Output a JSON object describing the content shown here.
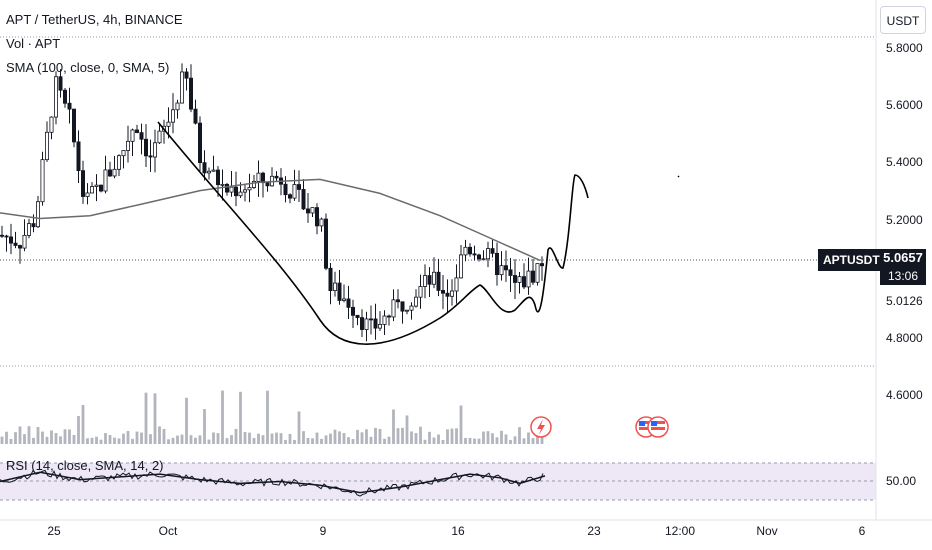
{
  "header": {
    "symbol_line": "APT / TetherUS, 4h, BINANCE",
    "volume_line": "Vol · APT",
    "sma_line": "SMA (100, close, 0, SMA, 5)"
  },
  "currency_button": "USDT",
  "price_label": {
    "ticker": "APTUSDT",
    "value": "5.0657",
    "countdown": "13:06"
  },
  "y_axis_labels": [
    "5.8000",
    "5.6000",
    "5.4000",
    "5.2000",
    "5.0126",
    "4.8000",
    "4.6000"
  ],
  "rsi": {
    "legend": "RSI (14, close, SMA, 14, 2)",
    "level_label": "50.00"
  },
  "x_axis_labels": [
    "25",
    "Oct",
    "9",
    "16",
    "23",
    "12:00",
    "Nov",
    "6"
  ],
  "colors": {
    "up": "#26a69a",
    "down": "#ef5350",
    "candle": "#131722",
    "sma": "#6b6b6b",
    "rsi_band": "#7e57c2"
  },
  "chart_data": {
    "type": "line",
    "title": "APT / TetherUS, 4h, BINANCE",
    "ylim": [
      4.55,
      5.85
    ],
    "price_path": [
      {
        "x": 0,
        "y": 5.14
      },
      {
        "x": 20,
        "y": 5.12
      },
      {
        "x": 35,
        "y": 5.2
      },
      {
        "x": 55,
        "y": 5.68
      },
      {
        "x": 70,
        "y": 5.55
      },
      {
        "x": 85,
        "y": 5.25
      },
      {
        "x": 100,
        "y": 5.32
      },
      {
        "x": 120,
        "y": 5.42
      },
      {
        "x": 135,
        "y": 5.55
      },
      {
        "x": 150,
        "y": 5.42
      },
      {
        "x": 170,
        "y": 5.56
      },
      {
        "x": 185,
        "y": 5.72
      },
      {
        "x": 200,
        "y": 5.42
      },
      {
        "x": 225,
        "y": 5.3
      },
      {
        "x": 250,
        "y": 5.32
      },
      {
        "x": 280,
        "y": 5.35
      },
      {
        "x": 300,
        "y": 5.26
      },
      {
        "x": 320,
        "y": 5.2
      },
      {
        "x": 330,
        "y": 4.95
      },
      {
        "x": 350,
        "y": 4.9
      },
      {
        "x": 370,
        "y": 4.8
      },
      {
        "x": 390,
        "y": 4.86
      },
      {
        "x": 410,
        "y": 4.92
      },
      {
        "x": 430,
        "y": 4.98
      },
      {
        "x": 450,
        "y": 4.93
      },
      {
        "x": 465,
        "y": 5.1
      },
      {
        "x": 480,
        "y": 5.08
      },
      {
        "x": 500,
        "y": 5.02
      },
      {
        "x": 515,
        "y": 4.96
      },
      {
        "x": 530,
        "y": 4.99
      },
      {
        "x": 545,
        "y": 5.06
      }
    ],
    "sma_100": [
      {
        "x": 0,
        "y": 5.22
      },
      {
        "x": 40,
        "y": 5.2
      },
      {
        "x": 90,
        "y": 5.21
      },
      {
        "x": 140,
        "y": 5.25
      },
      {
        "x": 200,
        "y": 5.3
      },
      {
        "x": 260,
        "y": 5.33
      },
      {
        "x": 320,
        "y": 5.34
      },
      {
        "x": 380,
        "y": 5.29
      },
      {
        "x": 440,
        "y": 5.21
      },
      {
        "x": 490,
        "y": 5.13
      },
      {
        "x": 540,
        "y": 5.05
      }
    ],
    "rsi_path": [
      {
        "x": 0,
        "y": 50
      },
      {
        "x": 40,
        "y": 60
      },
      {
        "x": 80,
        "y": 52
      },
      {
        "x": 120,
        "y": 55
      },
      {
        "x": 160,
        "y": 58
      },
      {
        "x": 200,
        "y": 52
      },
      {
        "x": 240,
        "y": 48
      },
      {
        "x": 280,
        "y": 50
      },
      {
        "x": 320,
        "y": 46
      },
      {
        "x": 360,
        "y": 38
      },
      {
        "x": 400,
        "y": 44
      },
      {
        "x": 440,
        "y": 52
      },
      {
        "x": 470,
        "y": 58
      },
      {
        "x": 500,
        "y": 54
      },
      {
        "x": 520,
        "y": 48
      },
      {
        "x": 545,
        "y": 56
      }
    ]
  }
}
